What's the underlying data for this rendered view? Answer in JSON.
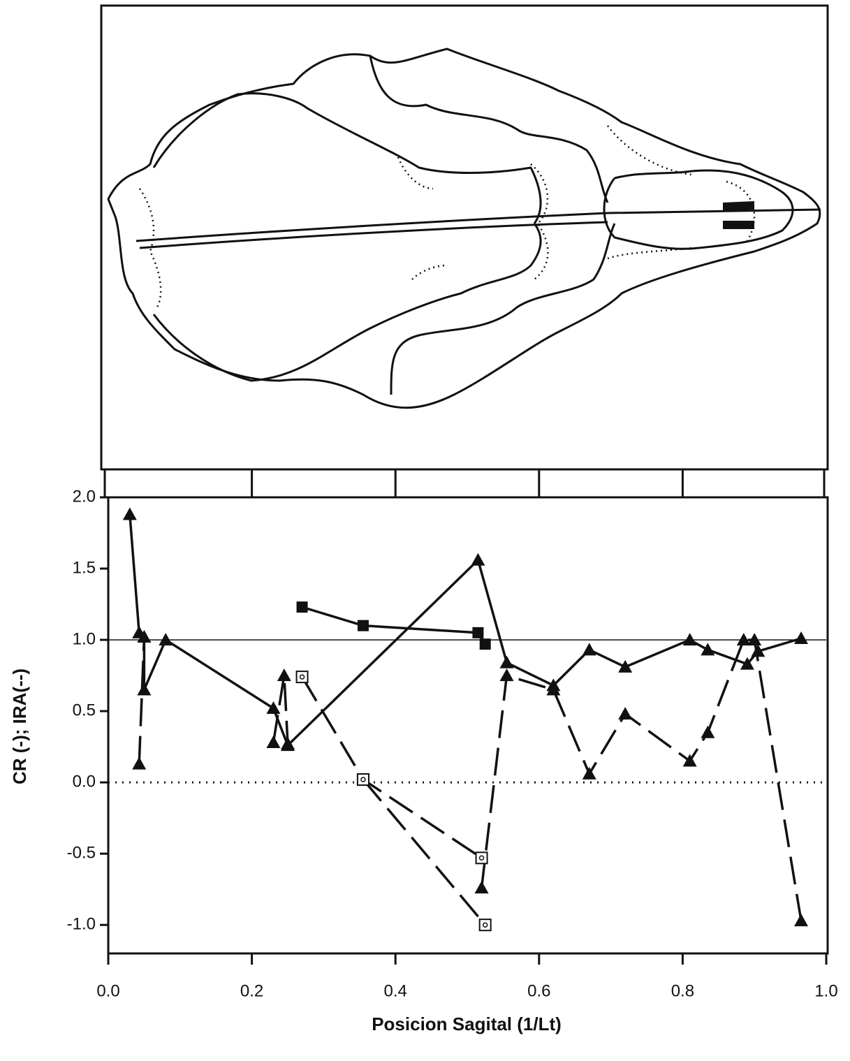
{
  "chart_data": {
    "type": "line",
    "xlabel": "Posicion Sagital (1/Lt)",
    "ylabel": "CR (-); IRA(--)",
    "xlim": [
      0,
      1
    ],
    "ylim": [
      -1.2,
      2.0
    ],
    "xticks": [
      {
        "value": 0,
        "label": "0.0"
      },
      0.2,
      0.4,
      0.6,
      0.8,
      {
        "value": 1,
        "label": "1.0"
      }
    ],
    "yticks": [
      {
        "value": -1,
        "label": "-1.0"
      },
      -0.5,
      {
        "value": 0,
        "label": "0.0"
      },
      0.5,
      {
        "value": 1,
        "label": "1.0"
      },
      1.5,
      {
        "value": 2,
        "label": "2.0"
      }
    ],
    "reference_lines": [
      {
        "value": 1,
        "style": "solid"
      },
      {
        "value": 0,
        "style": "dotted"
      }
    ],
    "series": [
      {
        "color": "#111111",
        "marker": "triangle",
        "dash": false,
        "x": [
          0.03,
          0.043,
          0.05,
          0.05,
          0.08,
          0.23,
          0.25,
          0.515,
          0.555,
          0.62,
          0.67,
          0.72,
          0.81,
          0.835,
          0.89,
          0.905,
          0.965
        ],
        "values": [
          1.88,
          1.05,
          1.02,
          0.65,
          1.0,
          0.52,
          0.26,
          1.56,
          0.84,
          0.68,
          0.93,
          0.81,
          1.0,
          0.93,
          0.83,
          0.92,
          1.01
        ]
      },
      {
        "color": "#111111",
        "marker": "square",
        "dash": false,
        "x": [
          0.27,
          0.355,
          0.515,
          0.525
        ],
        "values": [
          1.23,
          1.1,
          1.05,
          0.97
        ]
      },
      {
        "color": "#111111",
        "marker": "triangle",
        "dash": true,
        "x": [
          0.043,
          0.05,
          null,
          0.23,
          0.245,
          0.25,
          null,
          0.52,
          0.555,
          0.62,
          0.67,
          0.72,
          0.81,
          0.835,
          0.885,
          0.9,
          0.965
        ],
        "values": [
          0.13,
          1.02,
          null,
          0.28,
          0.75,
          0.27,
          null,
          -0.74,
          0.75,
          0.65,
          0.06,
          0.48,
          0.15,
          0.35,
          1.0,
          1.0,
          -0.97
        ]
      },
      {
        "color": "#111111",
        "marker": "open-square",
        "dash": true,
        "x": [
          0.27,
          0.355,
          0.52,
          null,
          0.355,
          0.525
        ],
        "values": [
          0.74,
          0.02,
          -0.53,
          null,
          0.02,
          -1.0
        ]
      }
    ]
  }
}
